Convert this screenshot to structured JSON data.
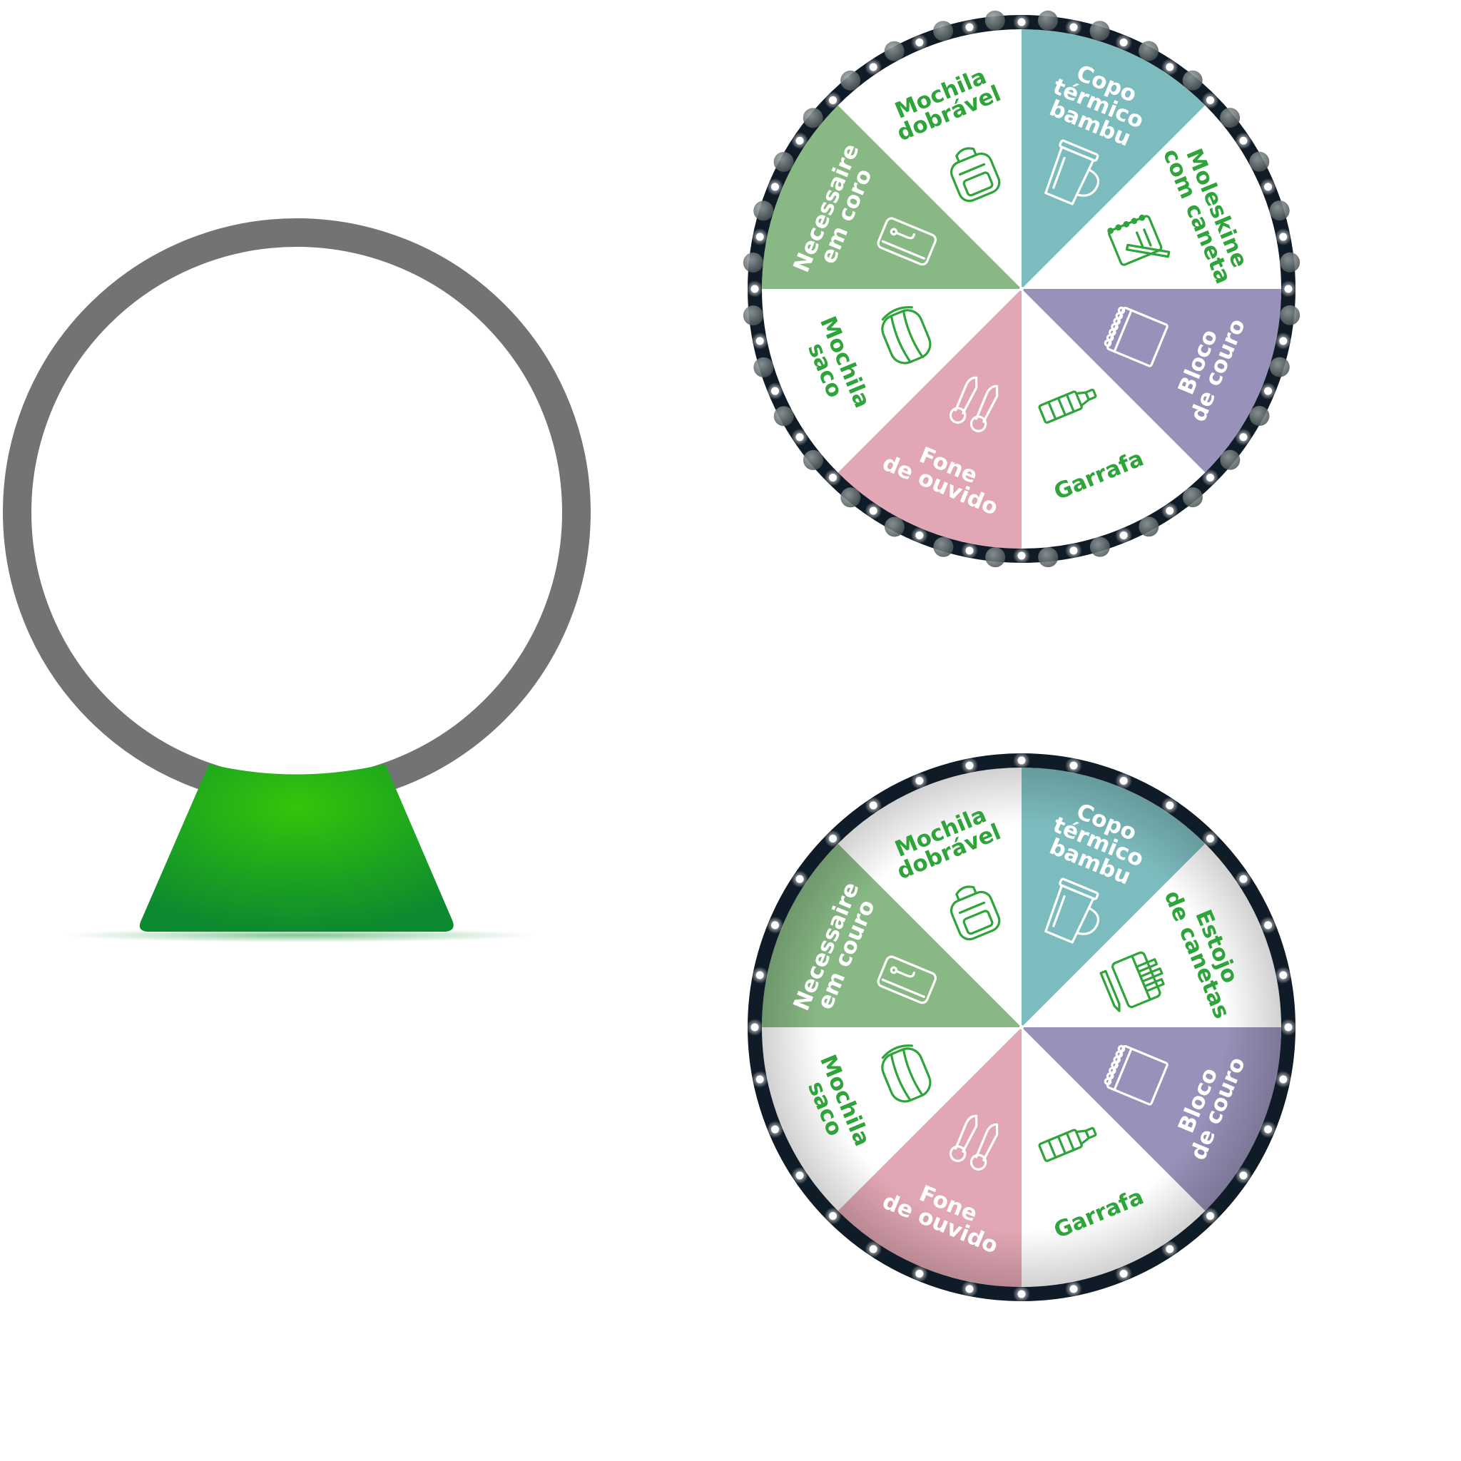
{
  "colors": {
    "frame_ring": "#737373",
    "stand_light": "#33c60a",
    "stand_dark": "#0c8a2f",
    "wheel_rim": "#0f1b26",
    "bulb": "#ffffff",
    "label_green": "#2ea43a",
    "label_white": "#ffffff",
    "icon_green": "#2ea43a",
    "icon_white": "#ffffff"
  },
  "frame": {
    "name": "wheel-stand-frame"
  },
  "wheel_top": {
    "name": "prize-wheel-top",
    "segments": [
      {
        "lines": [
          "Copo",
          "térmico",
          "bambu"
        ],
        "fill": "#7dbcbe",
        "label_color": "#ffffff",
        "icon": "thermal-cup-icon"
      },
      {
        "lines": [
          "Moleskine",
          "com caneta"
        ],
        "fill": "#ffffff",
        "label_color": "#2ea43a",
        "icon": "notebook-pen-icon"
      },
      {
        "lines": [
          "Bloco",
          "de couro"
        ],
        "fill": "#9891b9",
        "label_color": "#ffffff",
        "icon": "spiral-notepad-icon"
      },
      {
        "lines": [
          "Garrafa"
        ],
        "fill": "#ffffff",
        "label_color": "#2ea43a",
        "icon": "bottle-icon"
      },
      {
        "lines": [
          "Fone",
          "de ouvido"
        ],
        "fill": "#e2a7b4",
        "label_color": "#ffffff",
        "icon": "earphones-icon"
      },
      {
        "lines": [
          "Mochila",
          "saco"
        ],
        "fill": "#ffffff",
        "label_color": "#2ea43a",
        "icon": "drawstring-bag-icon"
      },
      {
        "lines": [
          "Necessaire",
          "em coro"
        ],
        "fill": "#88b985",
        "label_color": "#ffffff",
        "icon": "toiletry-bag-icon"
      },
      {
        "lines": [
          "Mochila",
          "dobrável"
        ],
        "fill": "#ffffff",
        "label_color": "#2ea43a",
        "icon": "backpack-icon"
      }
    ]
  },
  "wheel_bottom": {
    "name": "prize-wheel-bottom",
    "segments": [
      {
        "lines": [
          "Copo",
          "térmico",
          "bambu"
        ],
        "fill": "#7dbcbe",
        "label_color": "#ffffff",
        "icon": "thermal-cup-icon"
      },
      {
        "lines": [
          "Estojo",
          "de canetas"
        ],
        "fill": "#ffffff",
        "label_color": "#2ea43a",
        "icon": "pencil-case-icon"
      },
      {
        "lines": [
          "Bloco",
          "de couro"
        ],
        "fill": "#9891b9",
        "label_color": "#ffffff",
        "icon": "spiral-notepad-icon"
      },
      {
        "lines": [
          "Garrafa"
        ],
        "fill": "#ffffff",
        "label_color": "#2ea43a",
        "icon": "bottle-icon"
      },
      {
        "lines": [
          "Fone",
          "de ouvido"
        ],
        "fill": "#e2a7b4",
        "label_color": "#ffffff",
        "icon": "earphones-icon"
      },
      {
        "lines": [
          "Mochila",
          "saco"
        ],
        "fill": "#ffffff",
        "label_color": "#2ea43a",
        "icon": "drawstring-bag-icon"
      },
      {
        "lines": [
          "Necessaire",
          "em couro"
        ],
        "fill": "#88b985",
        "label_color": "#ffffff",
        "icon": "toiletry-bag-icon"
      },
      {
        "lines": [
          "Mochila",
          "dobrável"
        ],
        "fill": "#ffffff",
        "label_color": "#2ea43a",
        "icon": "backpack-icon"
      }
    ]
  }
}
